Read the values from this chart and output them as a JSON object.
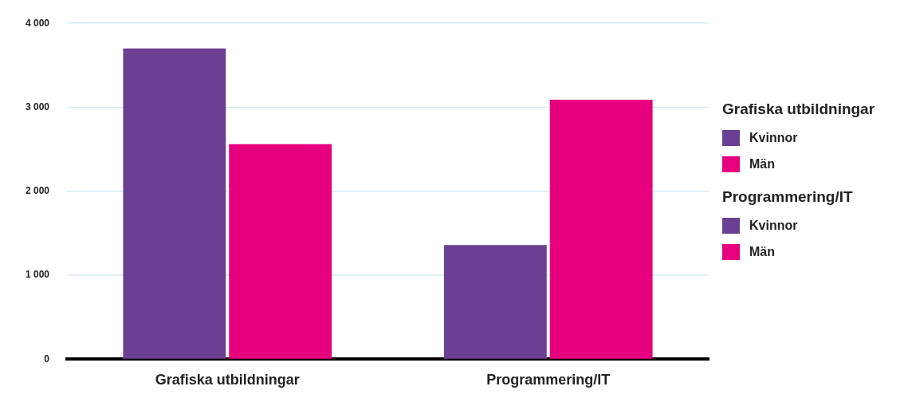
{
  "chart_data": {
    "type": "bar",
    "categories": [
      "Grafiska utbildningar",
      "Programmering/IT"
    ],
    "series": [
      {
        "name": "Kvinnor",
        "color": "#6b3f92",
        "values": [
          3700,
          null
        ]
      },
      {
        "name": "Män",
        "color": "#e6007e",
        "values": [
          2560,
          null
        ]
      },
      {
        "name": "Kvinnor",
        "color": "#6b3f92",
        "values": [
          null,
          1360
        ]
      },
      {
        "name": "Män",
        "color": "#e6007e",
        "values": [
          null,
          3090
        ]
      }
    ],
    "ylim": [
      0,
      4000
    ],
    "yticks": [
      {
        "value": 0,
        "label": "0"
      },
      {
        "value": 1000,
        "label": "1 000"
      },
      {
        "value": 2000,
        "label": "2 000"
      },
      {
        "value": 3000,
        "label": "3 000"
      },
      {
        "value": 4000,
        "label": "4 000"
      }
    ],
    "grid": "y",
    "legend": "right"
  }
}
